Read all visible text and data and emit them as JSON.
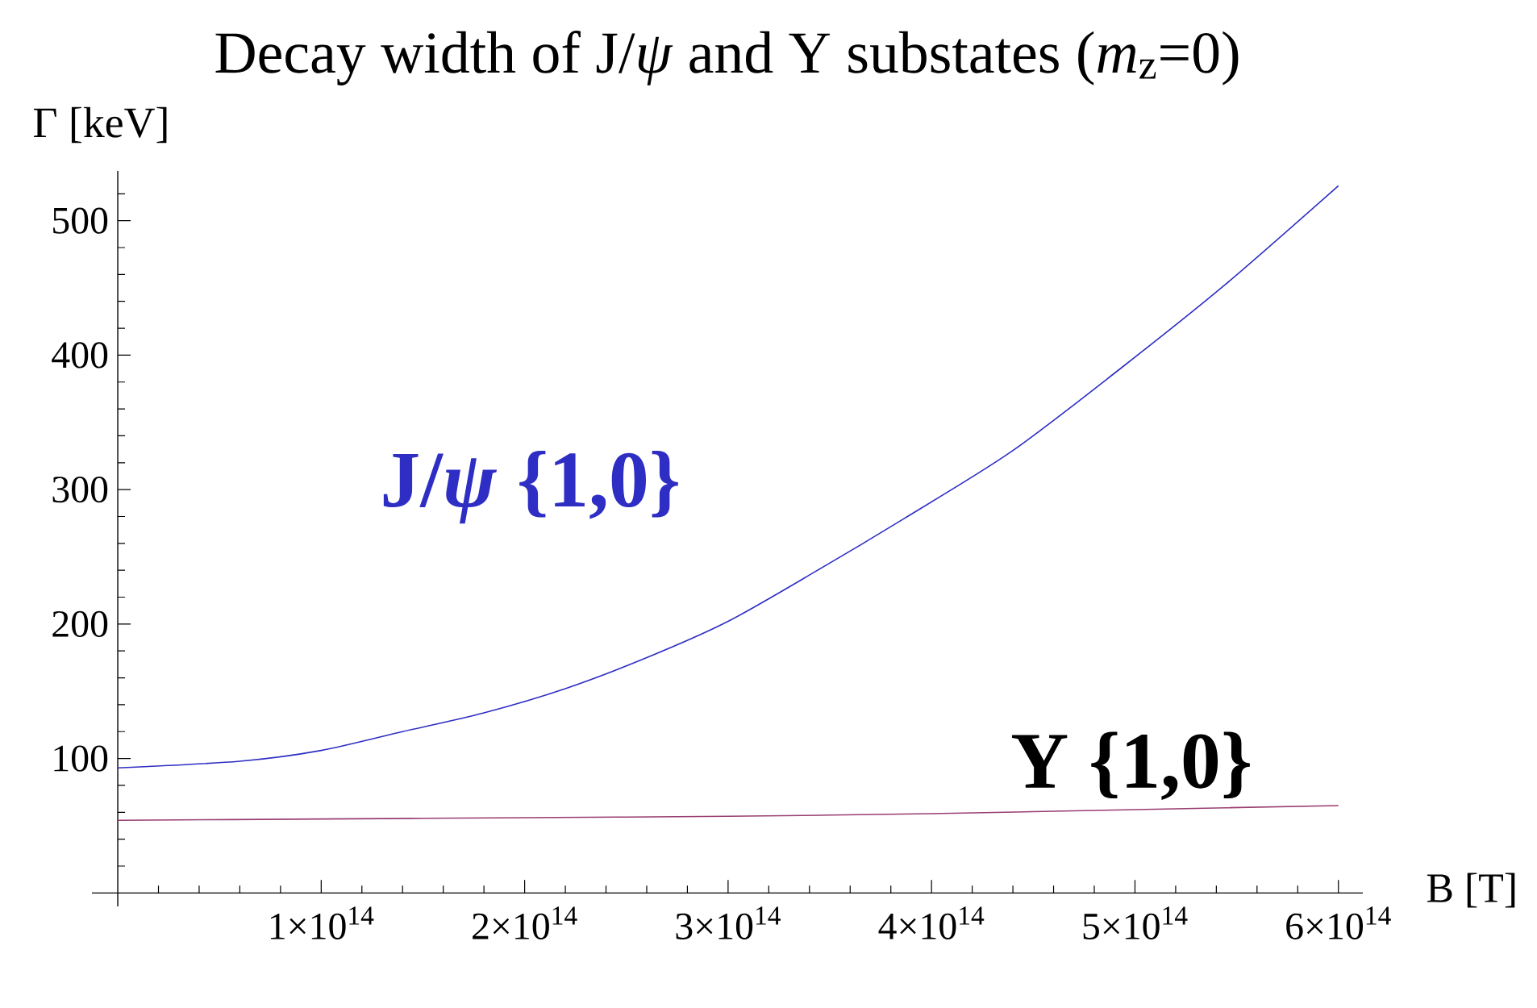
{
  "chart_data": {
    "type": "line",
    "title": "Decay width of J/*ψ* and Υ substates (*m*$_{z}$=0)",
    "xlabel": "B [T]",
    "ylabel": "Γ [keV]",
    "series": [
      {
        "name": "J/*ψ* {1,0}",
        "color": "#2e2ec4",
        "x": [
          0,
          60000000000000.0,
          100000000000000.0,
          140000000000000.0,
          180000000000000.0,
          220000000000000.0,
          260000000000000.0,
          300000000000000.0,
          344000000000000.0,
          386000000000000.0,
          439000000000000.0,
          492000000000000.0,
          544000000000000.0,
          600000000000000.0
        ],
        "values": [
          93,
          98,
          106,
          120,
          134,
          152,
          175,
          202,
          240,
          278,
          328,
          389,
          452,
          526
        ]
      },
      {
        "name": "Υ {1,0}",
        "color": "#993d71",
        "x": [
          0,
          100000000000000.0,
          200000000000000.0,
          300000000000000.0,
          400000000000000.0,
          500000000000000.0,
          600000000000000.0
        ],
        "values": [
          54,
          55,
          56,
          57,
          59,
          62,
          65
        ]
      }
    ],
    "xlim": [
      -12700000000000.0,
      612000000000000.0
    ],
    "ylim": [
      -10,
      537
    ],
    "xticks": [
      {
        "value": 20000000000000.0,
        "label": null
      },
      {
        "value": 40000000000000.0,
        "label": null
      },
      {
        "value": 60000000000000.0,
        "label": null
      },
      {
        "value": 80000000000000.0,
        "label": null
      },
      {
        "value": 100000000000000.0,
        "label": "1×10$^{14}$"
      },
      {
        "value": 120000000000000.0,
        "label": null
      },
      {
        "value": 140000000000000.0,
        "label": null
      },
      {
        "value": 160000000000000.0,
        "label": null
      },
      {
        "value": 180000000000000.0,
        "label": null
      },
      {
        "value": 200000000000000.0,
        "label": "2×10$^{14}$"
      },
      {
        "value": 220000000000000.0,
        "label": null
      },
      {
        "value": 240000000000000.0,
        "label": null
      },
      {
        "value": 260000000000000.0,
        "label": null
      },
      {
        "value": 280000000000000.0,
        "label": null
      },
      {
        "value": 300000000000000.0,
        "label": "3×10$^{14}$"
      },
      {
        "value": 320000000000000.0,
        "label": null
      },
      {
        "value": 340000000000000.0,
        "label": null
      },
      {
        "value": 360000000000000.0,
        "label": null
      },
      {
        "value": 380000000000000.0,
        "label": null
      },
      {
        "value": 400000000000000.0,
        "label": "4×10$^{14}$"
      },
      {
        "value": 420000000000000.0,
        "label": null
      },
      {
        "value": 440000000000000.0,
        "label": null
      },
      {
        "value": 460000000000000.0,
        "label": null
      },
      {
        "value": 480000000000000.0,
        "label": null
      },
      {
        "value": 500000000000000.0,
        "label": "5×10$^{14}$"
      },
      {
        "value": 520000000000000.0,
        "label": null
      },
      {
        "value": 540000000000000.0,
        "label": null
      },
      {
        "value": 560000000000000.0,
        "label": null
      },
      {
        "value": 580000000000000.0,
        "label": null
      },
      {
        "value": 600000000000000.0,
        "label": "6×10$^{14}$"
      }
    ],
    "yticks": [
      {
        "value": 20,
        "label": null
      },
      {
        "value": 40,
        "label": null
      },
      {
        "value": 60,
        "label": null
      },
      {
        "value": 80,
        "label": null
      },
      100,
      {
        "value": 120,
        "label": null
      },
      {
        "value": 140,
        "label": null
      },
      {
        "value": 160,
        "label": null
      },
      {
        "value": 180,
        "label": null
      },
      200,
      {
        "value": 220,
        "label": null
      },
      {
        "value": 240,
        "label": null
      },
      {
        "value": 260,
        "label": null
      },
      {
        "value": 280,
        "label": null
      },
      300,
      {
        "value": 320,
        "label": null
      },
      {
        "value": 340,
        "label": null
      },
      {
        "value": 360,
        "label": null
      },
      {
        "value": 380,
        "label": null
      },
      400,
      {
        "value": 420,
        "label": null
      },
      {
        "value": 440,
        "label": null
      },
      {
        "value": 460,
        "label": null
      },
      {
        "value": 480,
        "label": null
      },
      500,
      {
        "value": 520,
        "label": null
      }
    ]
  }
}
